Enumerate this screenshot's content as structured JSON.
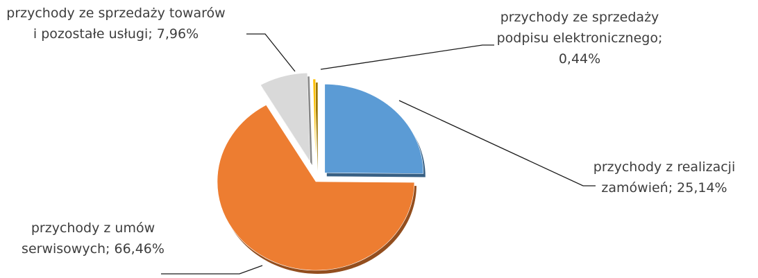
{
  "chart_data": {
    "type": "pie",
    "style": "3d-exploded",
    "legend": "none",
    "slices": [
      {
        "label_lines": [
          "przychody z realizacji",
          "zamówień; 25,14%"
        ],
        "category": "przychody z realizacji zamówień",
        "value": 25.14,
        "color": "#5b9bd5"
      },
      {
        "label_lines": [
          "przychody z umów",
          "serwisowych; 66,46%"
        ],
        "category": "przychody z umów serwisowych",
        "value": 66.46,
        "color": "#ed7d31"
      },
      {
        "label_lines": [
          "przychody ze sprzedaży towarów",
          "i pozostałe usługi; 7,96%"
        ],
        "category": "przychody ze sprzedaży towarów i pozostałe usługi",
        "value": 7.96,
        "color": "#d9d9d9"
      },
      {
        "label_lines": [
          "przychody ze sprzedaży",
          "podpisu elektronicznego;",
          "0,44%"
        ],
        "category": "przychody ze sprzedaży podpisu elektronicznego",
        "value": 0.44,
        "color": "#ffc000"
      }
    ]
  }
}
